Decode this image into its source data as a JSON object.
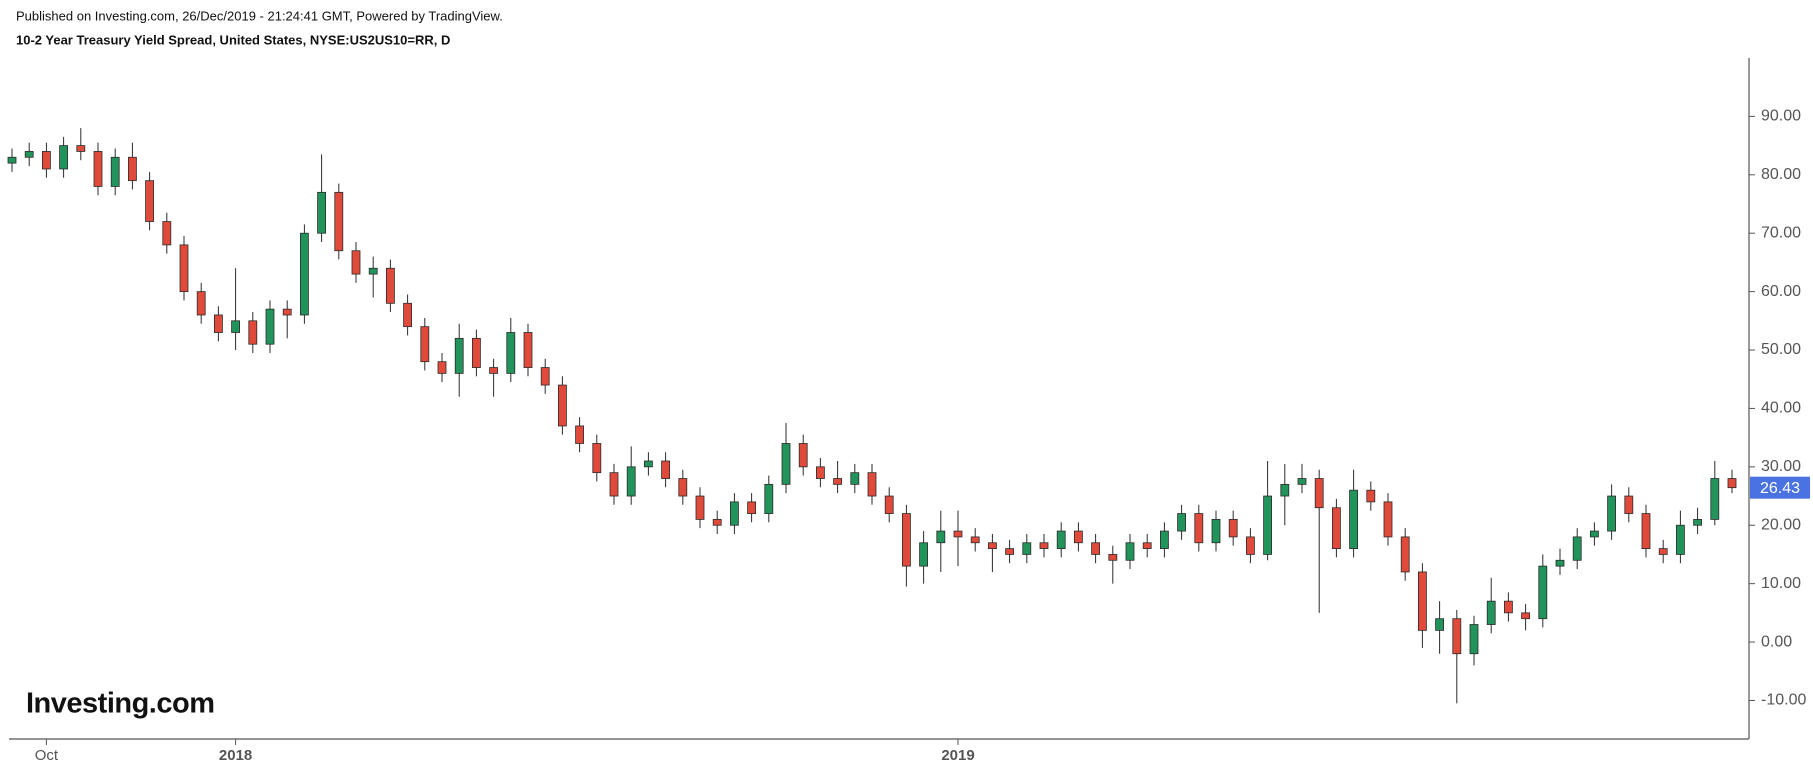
{
  "chart_data": {
    "type": "candlestick",
    "published": "Published on Investing.com, 26/Dec/2019 - 21:24:41 GMT, Powered by TradingView.",
    "title": "10-2 Year Treasury Yield Spread, United States, NYSE:US2US10=RR, D",
    "logo": "Investing.com",
    "categories": [
      null,
      null,
      "Oct",
      null,
      null,
      null,
      null,
      null,
      null,
      null,
      null,
      null,
      null,
      "2018",
      null,
      null,
      null,
      null,
      null,
      null,
      null,
      null,
      null,
      null,
      null,
      null,
      null,
      null,
      null,
      null,
      null,
      null,
      null,
      null,
      null,
      null,
      null,
      null,
      null,
      null,
      null,
      null,
      null,
      null,
      null,
      null,
      null,
      null,
      null,
      null,
      null,
      null,
      null,
      null,
      null,
      "2019",
      null,
      null,
      null,
      null,
      null,
      null,
      null,
      null,
      null,
      null,
      null,
      null,
      null,
      null,
      null,
      null,
      null,
      null,
      null,
      null,
      null,
      null,
      null,
      null,
      null,
      null,
      null,
      null,
      null,
      null,
      null,
      null,
      null,
      null,
      null,
      null,
      null,
      null,
      null,
      null,
      null,
      null,
      null,
      null,
      null
    ],
    "open": [
      82,
      83,
      84,
      81,
      85,
      84,
      78,
      83,
      79,
      72,
      68,
      60,
      56,
      53,
      55,
      51,
      57,
      56,
      70,
      77,
      67,
      63,
      64,
      58,
      54,
      48,
      46,
      52,
      47,
      46,
      53,
      47,
      44,
      37,
      34,
      29,
      25,
      30,
      31,
      28,
      25,
      21,
      20,
      24,
      22,
      27,
      34,
      30,
      28,
      27,
      29,
      25,
      22,
      13,
      17,
      19,
      18,
      17,
      16,
      15,
      17,
      16,
      19,
      17,
      15,
      14,
      17,
      16,
      19,
      22,
      17,
      21,
      18,
      15,
      25,
      27,
      28,
      23,
      16,
      26,
      24,
      18,
      12,
      2,
      4,
      -2,
      3,
      7,
      5,
      4,
      13,
      14,
      18,
      19,
      25,
      22,
      16,
      15,
      20,
      21,
      28
    ],
    "high": [
      84.5,
      85.5,
      85.5,
      86.5,
      88,
      85.5,
      84.5,
      85.5,
      80.5,
      73.5,
      69.5,
      61.5,
      57.5,
      64,
      56.5,
      58.5,
      58.5,
      71.5,
      83.5,
      78.5,
      68.5,
      66,
      65.5,
      59.5,
      55.5,
      49.5,
      54.5,
      53.5,
      48.5,
      55.5,
      54.5,
      48.5,
      45.5,
      38.5,
      35.5,
      30.5,
      33.5,
      32.5,
      32.5,
      29.5,
      26.5,
      22.5,
      25.5,
      25.5,
      28.5,
      37.5,
      35.5,
      31.5,
      31,
      30.5,
      30.5,
      26.5,
      23.5,
      19,
      22.5,
      22.5,
      19.5,
      18.5,
      17.5,
      18.5,
      18.5,
      20.5,
      20.5,
      18.5,
      16.5,
      18.5,
      18.5,
      20.5,
      23.5,
      23.5,
      22.5,
      22.5,
      19.5,
      31,
      30.5,
      30.5,
      29.5,
      24.5,
      29.5,
      27.5,
      25.5,
      19.5,
      13.5,
      7,
      5.5,
      4.5,
      11,
      8.5,
      6.5,
      15,
      16,
      19.5,
      20.5,
      27,
      26.5,
      23.5,
      17.5,
      22.5,
      23,
      31,
      29.5
    ],
    "low": [
      80.5,
      81.5,
      79.5,
      79.5,
      82.5,
      76.5,
      76.5,
      77.5,
      70.5,
      66.5,
      58.5,
      54.5,
      51.5,
      50,
      49.5,
      49.5,
      52,
      54.5,
      68.5,
      65.5,
      61.5,
      59,
      56.5,
      52.5,
      46.5,
      44.5,
      42,
      45.5,
      42,
      44.5,
      45.5,
      42.5,
      35.5,
      32.5,
      27.5,
      23.5,
      23.5,
      28.5,
      26.5,
      23.5,
      19.5,
      18.5,
      18.5,
      20.5,
      20.5,
      25.5,
      28.5,
      26.5,
      25.5,
      25.5,
      23.5,
      20.5,
      9.5,
      10,
      12,
      13,
      15.5,
      12,
      13.5,
      13.5,
      14.5,
      14.5,
      15.5,
      13.5,
      10,
      12.5,
      14.5,
      14.5,
      17.5,
      15.5,
      15.5,
      16.5,
      13.5,
      14,
      20,
      25.5,
      5,
      14.5,
      14.5,
      22.5,
      16.5,
      10.5,
      -1,
      -2,
      -10.5,
      -4,
      1.5,
      3.5,
      2,
      2.5,
      11.5,
      12.5,
      16.5,
      17.5,
      20.5,
      14.5,
      13.5,
      13.5,
      18.5,
      20,
      25.5
    ],
    "close": [
      83,
      84,
      81,
      85,
      84,
      78,
      83,
      79,
      72,
      68,
      60,
      56,
      53,
      55,
      51,
      57,
      56,
      70,
      77,
      67,
      63,
      64,
      58,
      54,
      48,
      46,
      52,
      47,
      46,
      53,
      47,
      44,
      37,
      34,
      29,
      25,
      30,
      31,
      28,
      25,
      21,
      20,
      24,
      22,
      27,
      34,
      30,
      28,
      27,
      29,
      25,
      22,
      13,
      17,
      19,
      18,
      17,
      16,
      15,
      17,
      16,
      19,
      17,
      15,
      14,
      17,
      16,
      19,
      22,
      17,
      21,
      18,
      15,
      25,
      27,
      28,
      23,
      16,
      26,
      24,
      18,
      12,
      2,
      4,
      -2,
      3,
      7,
      5,
      4,
      13,
      14,
      18,
      19,
      25,
      22,
      16,
      15,
      20,
      21,
      28,
      26.43
    ],
    "up_color": "#22935a",
    "down_color": "#e04a3b",
    "last_price_color": "#4a72e0",
    "ylim": [
      -16.6,
      100
    ],
    "yticks": [
      {
        "value": -10,
        "label": "-10.00"
      },
      {
        "value": 0,
        "label": "0.00"
      },
      {
        "value": 10,
        "label": "10.00"
      },
      {
        "value": 20,
        "label": "20.00"
      },
      {
        "value": 30,
        "label": "30.00"
      },
      {
        "value": 40,
        "label": "40.00"
      },
      {
        "value": 50,
        "label": "50.00"
      },
      {
        "value": 60,
        "label": "60.00"
      },
      {
        "value": 70,
        "label": "70.00"
      },
      {
        "value": 80,
        "label": "80.00"
      },
      {
        "value": 90,
        "label": "90.00"
      }
    ],
    "grid": false
  }
}
